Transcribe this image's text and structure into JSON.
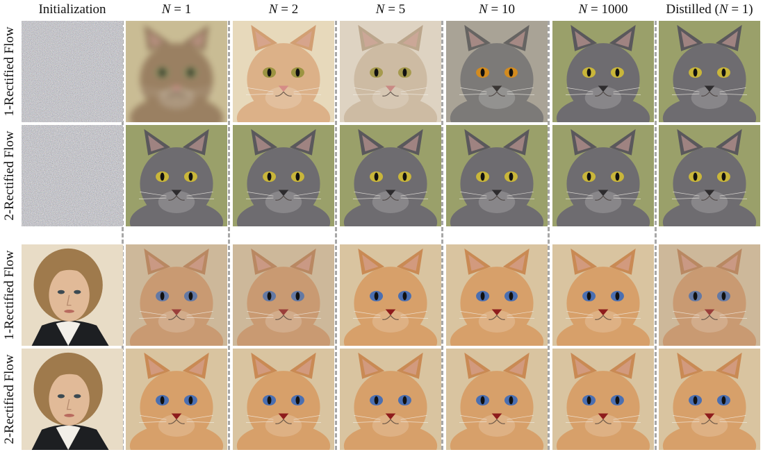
{
  "figure": {
    "column_headers": [
      {
        "text": "Initialization"
      },
      {
        "math": true,
        "var": "N",
        "eq": " = 1"
      },
      {
        "math": true,
        "var": "N",
        "eq": " = 2"
      },
      {
        "math": true,
        "var": "N",
        "eq": " = 5"
      },
      {
        "math": true,
        "var": "N",
        "eq": " = 10"
      },
      {
        "math": true,
        "var": "N",
        "eq": " = 1000"
      },
      {
        "distilled": true,
        "pre": "Distilled (",
        "var": "N",
        "eq": " = 1)"
      }
    ],
    "row_labels": [
      "1-Rectified Flow",
      "2-Rectified Flow",
      "1-Rectified Flow",
      "2-Rectified Flow"
    ],
    "rows": [
      [
        "noise",
        "cat-blurry",
        "cat-orange",
        "cat-cream",
        "cat-gray-orange-eyes",
        "cat-gray",
        "cat-gray"
      ],
      [
        "noise",
        "cat-gray",
        "cat-gray",
        "cat-gray",
        "cat-gray",
        "cat-gray",
        "cat-gray"
      ],
      [
        "portrait-man",
        "man-cat-blend",
        "man-cat-blend",
        "cat-orange-blue-eyes",
        "cat-orange-blue-eyes",
        "cat-orange-blue-eyes",
        "man-cat-blend"
      ],
      [
        "portrait-man",
        "cat-orange-blue-eyes",
        "cat-orange-blue-eyes",
        "cat-orange-blue-eyes",
        "cat-orange-blue-eyes",
        "cat-orange-blue-eyes",
        "cat-orange-blue-eyes"
      ]
    ],
    "palettes": {
      "cat-blurry": {
        "bg": "#c9bc94",
        "fur": "#9a8062",
        "ear": "#8f755a",
        "eye": "#7d8a5a",
        "nose": "#c98a84"
      },
      "cat-orange": {
        "bg": "#e7d9bb",
        "fur": "#dcb188",
        "ear": "#d29f73",
        "eye": "#9c9442",
        "nose": "#d58c86"
      },
      "cat-cream": {
        "bg": "#ded3c2",
        "fur": "#cdbba3",
        "ear": "#bba68c",
        "eye": "#a69a4e",
        "nose": "#c98a84"
      },
      "cat-gray-orange-eyes": {
        "bg": "#a9a396",
        "fur": "#7c7a78",
        "ear": "#666462",
        "eye": "#d28b1f",
        "nose": "#3a3634"
      },
      "cat-gray": {
        "bg": "#9aa06a",
        "fur": "#6e6c70",
        "ear": "#5a585c",
        "eye": "#c9b63a",
        "nose": "#2e2c2e"
      },
      "cat-orange-blue-eyes": {
        "bg": "#d9c4a0",
        "fur": "#d7a06a",
        "ear": "#c98a54",
        "eye": "#4b6fb1",
        "nose": "#8e1c1c"
      },
      "man-cat-blend": {
        "bg": "#cdb89a",
        "fur": "#c99a72",
        "ear": "#b98862",
        "eye": "#6479a4",
        "nose": "#9a3f3a"
      },
      "portrait-man": {
        "bg": "#e8dcc6",
        "hair": "#9f7a4c",
        "skin": "#e1ba98",
        "coat": "#1d1f22",
        "collar": "#f2efe8",
        "lip": "#b86a5e"
      }
    }
  }
}
